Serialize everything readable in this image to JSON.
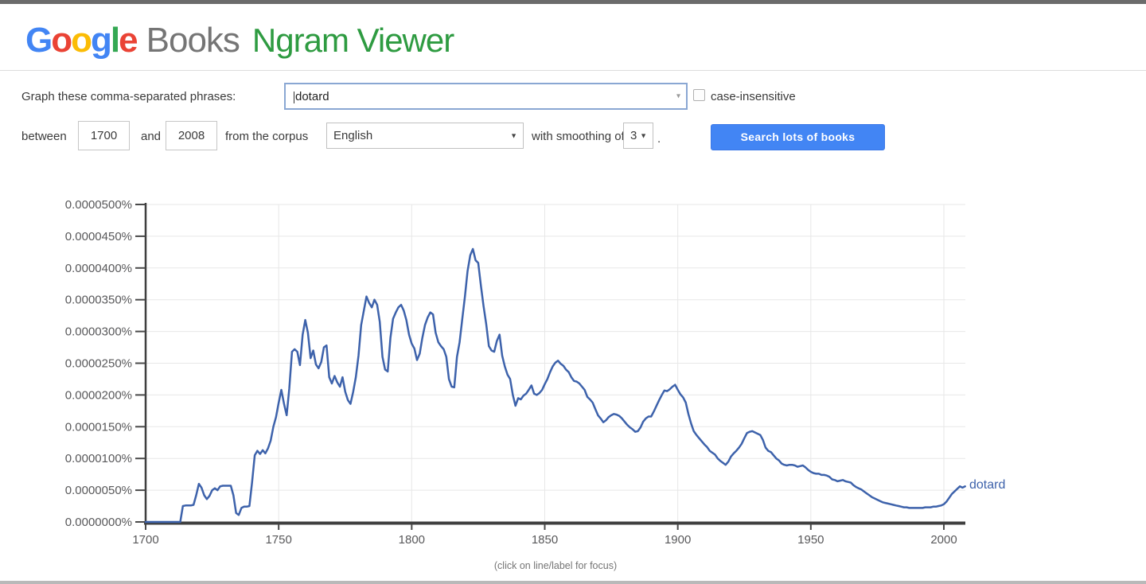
{
  "header": {
    "google_letters": [
      {
        "ch": "G",
        "color": "#4285F4"
      },
      {
        "ch": "o",
        "color": "#EA4335"
      },
      {
        "ch": "o",
        "color": "#FBBC05"
      },
      {
        "ch": "g",
        "color": "#4285F4"
      },
      {
        "ch": "l",
        "color": "#34A853"
      },
      {
        "ch": "e",
        "color": "#EA4335"
      }
    ],
    "books": "Books",
    "ngram": "Ngram Viewer"
  },
  "form": {
    "phrase_label": "Graph these comma-separated phrases:",
    "phrase_value": "dotard",
    "case_label": "case-insensitive",
    "case_checked": false,
    "between_label": "between",
    "year_from": "1700",
    "and_label": "and",
    "year_to": "2008",
    "corpus_label": "from the corpus",
    "corpus_value": "English",
    "smoothing_label": "with smoothing of",
    "smoothing_value": "3",
    "period": ".",
    "search_button": "Search lots of books",
    "button_color": "#4285f4"
  },
  "chart_data": {
    "type": "line",
    "title": "",
    "xlabel": "",
    "ylabel": "",
    "x_range": [
      1700,
      2008
    ],
    "x_ticks": [
      1700,
      1750,
      1800,
      1850,
      1900,
      1950,
      2000
    ],
    "x_tick_labels": [
      "1700",
      "1750",
      "1800",
      "1850",
      "1900",
      "1950",
      "2000"
    ],
    "ylim": [
      0,
      500
    ],
    "y_tick_step": 50,
    "y_tick_labels": [
      "0.0000000%",
      "0.0000050%",
      "0.0000100%",
      "0.0000150%",
      "0.0000200%",
      "0.0000250%",
      "0.0000300%",
      "0.0000350%",
      "0.0000400%",
      "0.0000450%",
      "0.0000500%"
    ],
    "grid": true,
    "value_unit": "1e-7 percent of corpus",
    "footnote": "(click on line/label for focus)",
    "series": [
      {
        "name": "dotard",
        "color": "#3d62ab",
        "x_start": 1700,
        "x_step": 1,
        "values": [
          0,
          0,
          0,
          0,
          0,
          0,
          0,
          0,
          0,
          0,
          0,
          0,
          0,
          0,
          25,
          26,
          26,
          26,
          27,
          42,
          60,
          54,
          42,
          36,
          41,
          50,
          53,
          50,
          56,
          57,
          57,
          57,
          57,
          42,
          14,
          11,
          22,
          24,
          24,
          25,
          62,
          105,
          112,
          107,
          113,
          108,
          116,
          128,
          150,
          165,
          188,
          208,
          186,
          168,
          210,
          268,
          272,
          268,
          247,
          295,
          318,
          298,
          258,
          270,
          248,
          242,
          252,
          275,
          278,
          228,
          218,
          230,
          220,
          213,
          228,
          205,
          192,
          186,
          205,
          228,
          262,
          310,
          333,
          355,
          345,
          338,
          350,
          342,
          315,
          260,
          240,
          237,
          290,
          320,
          330,
          338,
          342,
          333,
          318,
          295,
          281,
          273,
          255,
          265,
          290,
          310,
          322,
          330,
          327,
          298,
          283,
          277,
          272,
          260,
          225,
          213,
          212,
          260,
          283,
          320,
          355,
          395,
          420,
          430,
          412,
          408,
          372,
          340,
          312,
          277,
          270,
          268,
          285,
          295,
          262,
          245,
          232,
          225,
          200,
          183,
          195,
          193,
          199,
          202,
          208,
          215,
          202,
          200,
          203,
          208,
          217,
          225,
          236,
          245,
          251,
          254,
          249,
          246,
          240,
          236,
          228,
          222,
          221,
          218,
          213,
          208,
          197,
          193,
          188,
          178,
          168,
          163,
          157,
          160,
          165,
          168,
          170,
          169,
          167,
          163,
          158,
          153,
          149,
          146,
          142,
          143,
          149,
          158,
          163,
          166,
          166,
          174,
          183,
          192,
          200,
          207,
          206,
          209,
          213,
          216,
          208,
          201,
          196,
          188,
          170,
          155,
          143,
          137,
          132,
          127,
          122,
          118,
          112,
          109,
          106,
          100,
          96,
          93,
          90,
          95,
          103,
          108,
          112,
          117,
          123,
          132,
          140,
          142,
          143,
          141,
          139,
          137,
          129,
          117,
          112,
          110,
          105,
          100,
          97,
          92,
          90,
          89,
          90,
          90,
          89,
          87,
          88,
          89,
          86,
          82,
          79,
          77,
          76,
          76,
          74,
          74,
          73,
          71,
          67,
          66,
          64,
          65,
          66,
          64,
          63,
          62,
          58,
          55,
          53,
          51,
          48,
          45,
          42,
          39,
          37,
          35,
          33,
          31,
          30,
          29,
          28,
          27,
          26,
          25,
          24,
          23,
          23,
          22,
          22,
          22,
          22,
          22,
          22,
          23,
          23,
          23,
          24,
          24,
          25,
          26,
          28,
          32,
          38,
          44,
          48,
          52,
          56,
          54,
          56
        ]
      }
    ],
    "end_label": "dotard"
  }
}
